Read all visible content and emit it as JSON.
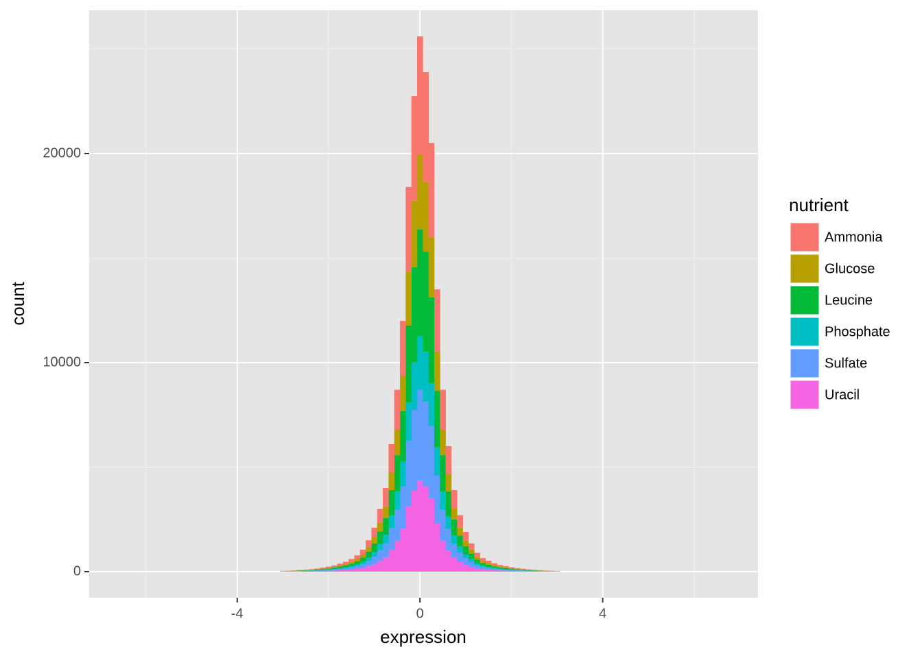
{
  "chart_data": {
    "type": "histogram",
    "x_label": "expression",
    "y_label": "count",
    "legend_title": "nutrient",
    "stacked": true,
    "grid": true,
    "legend_position": "right",
    "bins": [
      -3.0625,
      -2.9375,
      -2.8125,
      -2.6875,
      -2.5625,
      -2.4375,
      -2.3125,
      -2.1875,
      -2.0625,
      -1.9375,
      -1.8125,
      -1.6875,
      -1.5625,
      -1.4375,
      -1.3125,
      -1.1875,
      -1.0625,
      -0.9375,
      -0.8125,
      -0.6875,
      -0.5625,
      -0.4375,
      -0.3125,
      -0.1875,
      -0.0625,
      0.0625,
      0.1875,
      0.3125,
      0.4375,
      0.5625,
      0.6875,
      0.8125,
      0.9375,
      1.0625,
      1.1875,
      1.3125,
      1.4375,
      1.5625,
      1.6875,
      1.8125,
      1.9375,
      2.0625,
      2.1875,
      2.3125,
      2.4375,
      2.5625,
      2.6875,
      2.8125,
      2.9375,
      3.0625
    ],
    "series": [
      {
        "name": "Ammonia",
        "color": "#F8766D",
        "values": [
          9,
          10,
          14,
          15,
          21,
          27,
          32,
          42,
          52,
          66,
          83,
          103,
          132,
          171,
          230,
          330,
          462,
          660,
          880,
          1342,
          1914,
          2640,
          4048,
          5004,
          5632,
          5258,
          4510,
          2970,
          1914,
          1320,
          858,
          594,
          418,
          296,
          198,
          142,
          115,
          88,
          71,
          58,
          46,
          37,
          30,
          24,
          20,
          15,
          12,
          10,
          7
        ]
      },
      {
        "name": "Glucose",
        "color": "#B79F00",
        "values": [
          5,
          7,
          8,
          11,
          13,
          17,
          21,
          27,
          34,
          42,
          53,
          66,
          84,
          109,
          147,
          210,
          294,
          420,
          560,
          854,
          1218,
          1680,
          2576,
          3185,
          3584,
          3346,
          2870,
          1890,
          1218,
          840,
          546,
          378,
          266,
          189,
          126,
          91,
          73,
          56,
          45,
          36,
          29,
          24,
          20,
          15,
          13,
          10,
          8,
          6,
          5
        ]
      },
      {
        "name": "Leucine",
        "color": "#00BA38",
        "values": [
          8,
          10,
          12,
          15,
          19,
          24,
          30,
          38,
          48,
          60,
          76,
          94,
          120,
          156,
          210,
          300,
          420,
          600,
          800,
          1220,
          1740,
          2400,
          3680,
          4550,
          5120,
          4780,
          4100,
          2700,
          1740,
          1200,
          780,
          540,
          380,
          270,
          180,
          130,
          104,
          80,
          64,
          52,
          42,
          34,
          28,
          22,
          18,
          14,
          11,
          9,
          7
        ]
      },
      {
        "name": "Phosphate",
        "color": "#00BFC4",
        "values": [
          4,
          5,
          6,
          8,
          10,
          12,
          15,
          19,
          24,
          30,
          38,
          47,
          60,
          78,
          105,
          150,
          210,
          300,
          400,
          610,
          870,
          1200,
          1840,
          2275,
          2560,
          2390,
          2050,
          1350,
          870,
          600,
          390,
          270,
          190,
          135,
          90,
          65,
          52,
          40,
          32,
          26,
          21,
          17,
          14,
          11,
          9,
          7,
          6,
          4,
          4
        ]
      },
      {
        "name": "Sulfate",
        "color": "#619CFF",
        "values": [
          6,
          8,
          10,
          13,
          16,
          20,
          26,
          32,
          41,
          51,
          65,
          80,
          102,
          133,
          179,
          255,
          357,
          510,
          680,
          1037,
          1479,
          2040,
          3128,
          3868,
          4352,
          4063,
          3485,
          2295,
          1479,
          1020,
          663,
          459,
          323,
          230,
          153,
          111,
          88,
          68,
          54,
          44,
          36,
          29,
          24,
          19,
          15,
          12,
          9,
          8,
          6
        ]
      },
      {
        "name": "Uracil",
        "color": "#F564E3",
        "values": [
          6,
          8,
          10,
          13,
          16,
          20,
          26,
          32,
          41,
          51,
          65,
          80,
          102,
          133,
          179,
          255,
          357,
          510,
          680,
          1037,
          1479,
          2040,
          3128,
          3868,
          4352,
          4063,
          3485,
          2295,
          1479,
          1020,
          663,
          459,
          323,
          230,
          153,
          111,
          88,
          68,
          54,
          44,
          36,
          29,
          24,
          19,
          15,
          12,
          9,
          8,
          6
        ]
      }
    ],
    "xlim": [
      -7.24,
      7.4
    ],
    "xticks": [
      -4,
      0,
      4
    ],
    "ylim": [
      -1246,
      26852
    ],
    "yticks": [
      0,
      10000,
      20000
    ]
  }
}
